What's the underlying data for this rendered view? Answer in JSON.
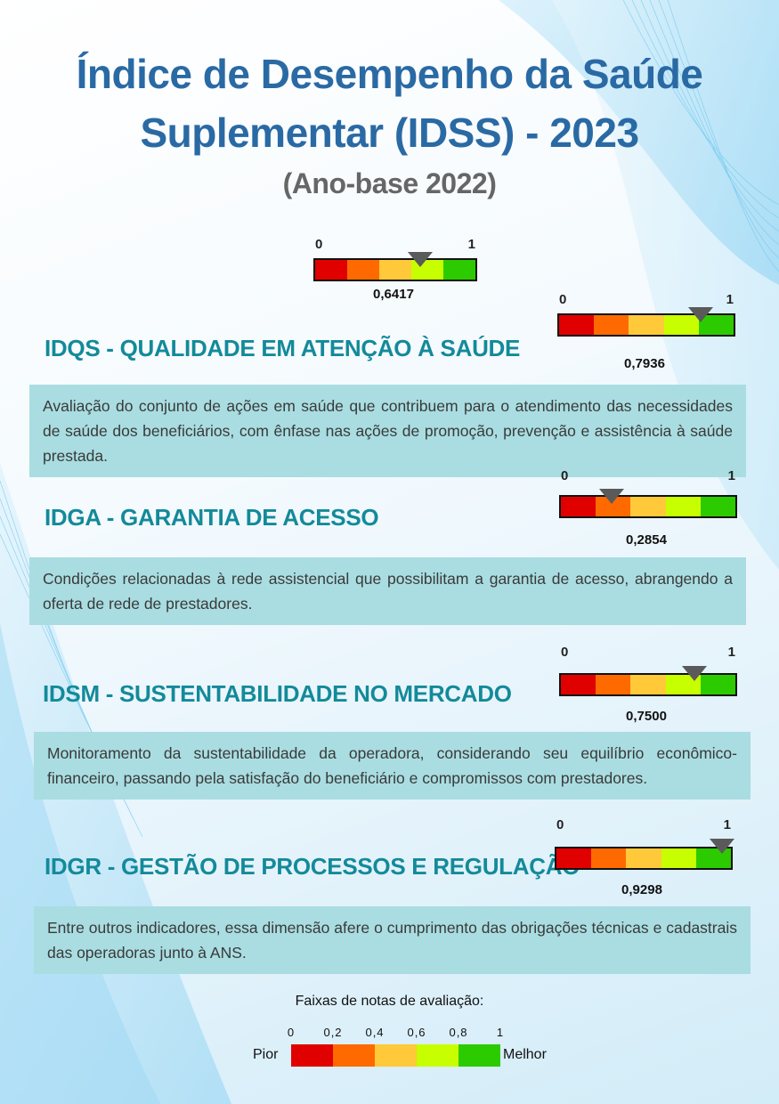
{
  "header": {
    "title_line1": "Índice de Desempenho da Saúde",
    "title_line2": "Suplementar (IDSS) - 2023",
    "subtitle": "(Ano-base 2022)"
  },
  "scale_colors": [
    "#e00000",
    "#ff6a00",
    "#ffc93a",
    "#c8ff00",
    "#2ccb00"
  ],
  "gauge_min_label": "0",
  "gauge_max_label": "1",
  "overall": {
    "value_label": "0,6417",
    "value": 0.6417
  },
  "dimensions": [
    {
      "heading": "IDQS - QUALIDADE EM ATENÇÃO À SAÚDE",
      "value_label": "0,7936",
      "value": 0.7936,
      "description": "Avaliação do conjunto de ações em saúde que contribuem para o atendimento das necessidades de saúde dos beneficiários, com ênfase nas ações de promoção, prevenção e assistência à saúde prestada."
    },
    {
      "heading": "IDGA - GARANTIA DE ACESSO",
      "value_label": "0,2854",
      "value": 0.2854,
      "description": "Condições relacionadas à rede assistencial que possibilitam a garantia de acesso, abrangendo a oferta de rede de prestadores."
    },
    {
      "heading": "IDSM - SUSTENTABILIDADE NO MERCADO",
      "value_label": "0,7500",
      "value": 0.75,
      "description": "Monitoramento da sustentabilidade da operadora, considerando seu equilíbrio econômico-financeiro, passando pela satisfação do beneficiário e compromissos com prestadores."
    },
    {
      "heading": "IDGR - GESTÃO DE PROCESSOS E REGULAÇÃO",
      "value_label": "0,9298",
      "value": 0.9298,
      "description": "Entre outros indicadores, essa dimensão afere o cumprimento das obrigações técnicas e cadastrais das operadoras junto à ANS."
    }
  ],
  "legend": {
    "title": "Faixas de notas de avaliação:",
    "ticks": [
      "0",
      "0,2",
      "0,4",
      "0,6",
      "0,8",
      "1"
    ],
    "worst_label": "Pior",
    "best_label": "Melhor"
  }
}
